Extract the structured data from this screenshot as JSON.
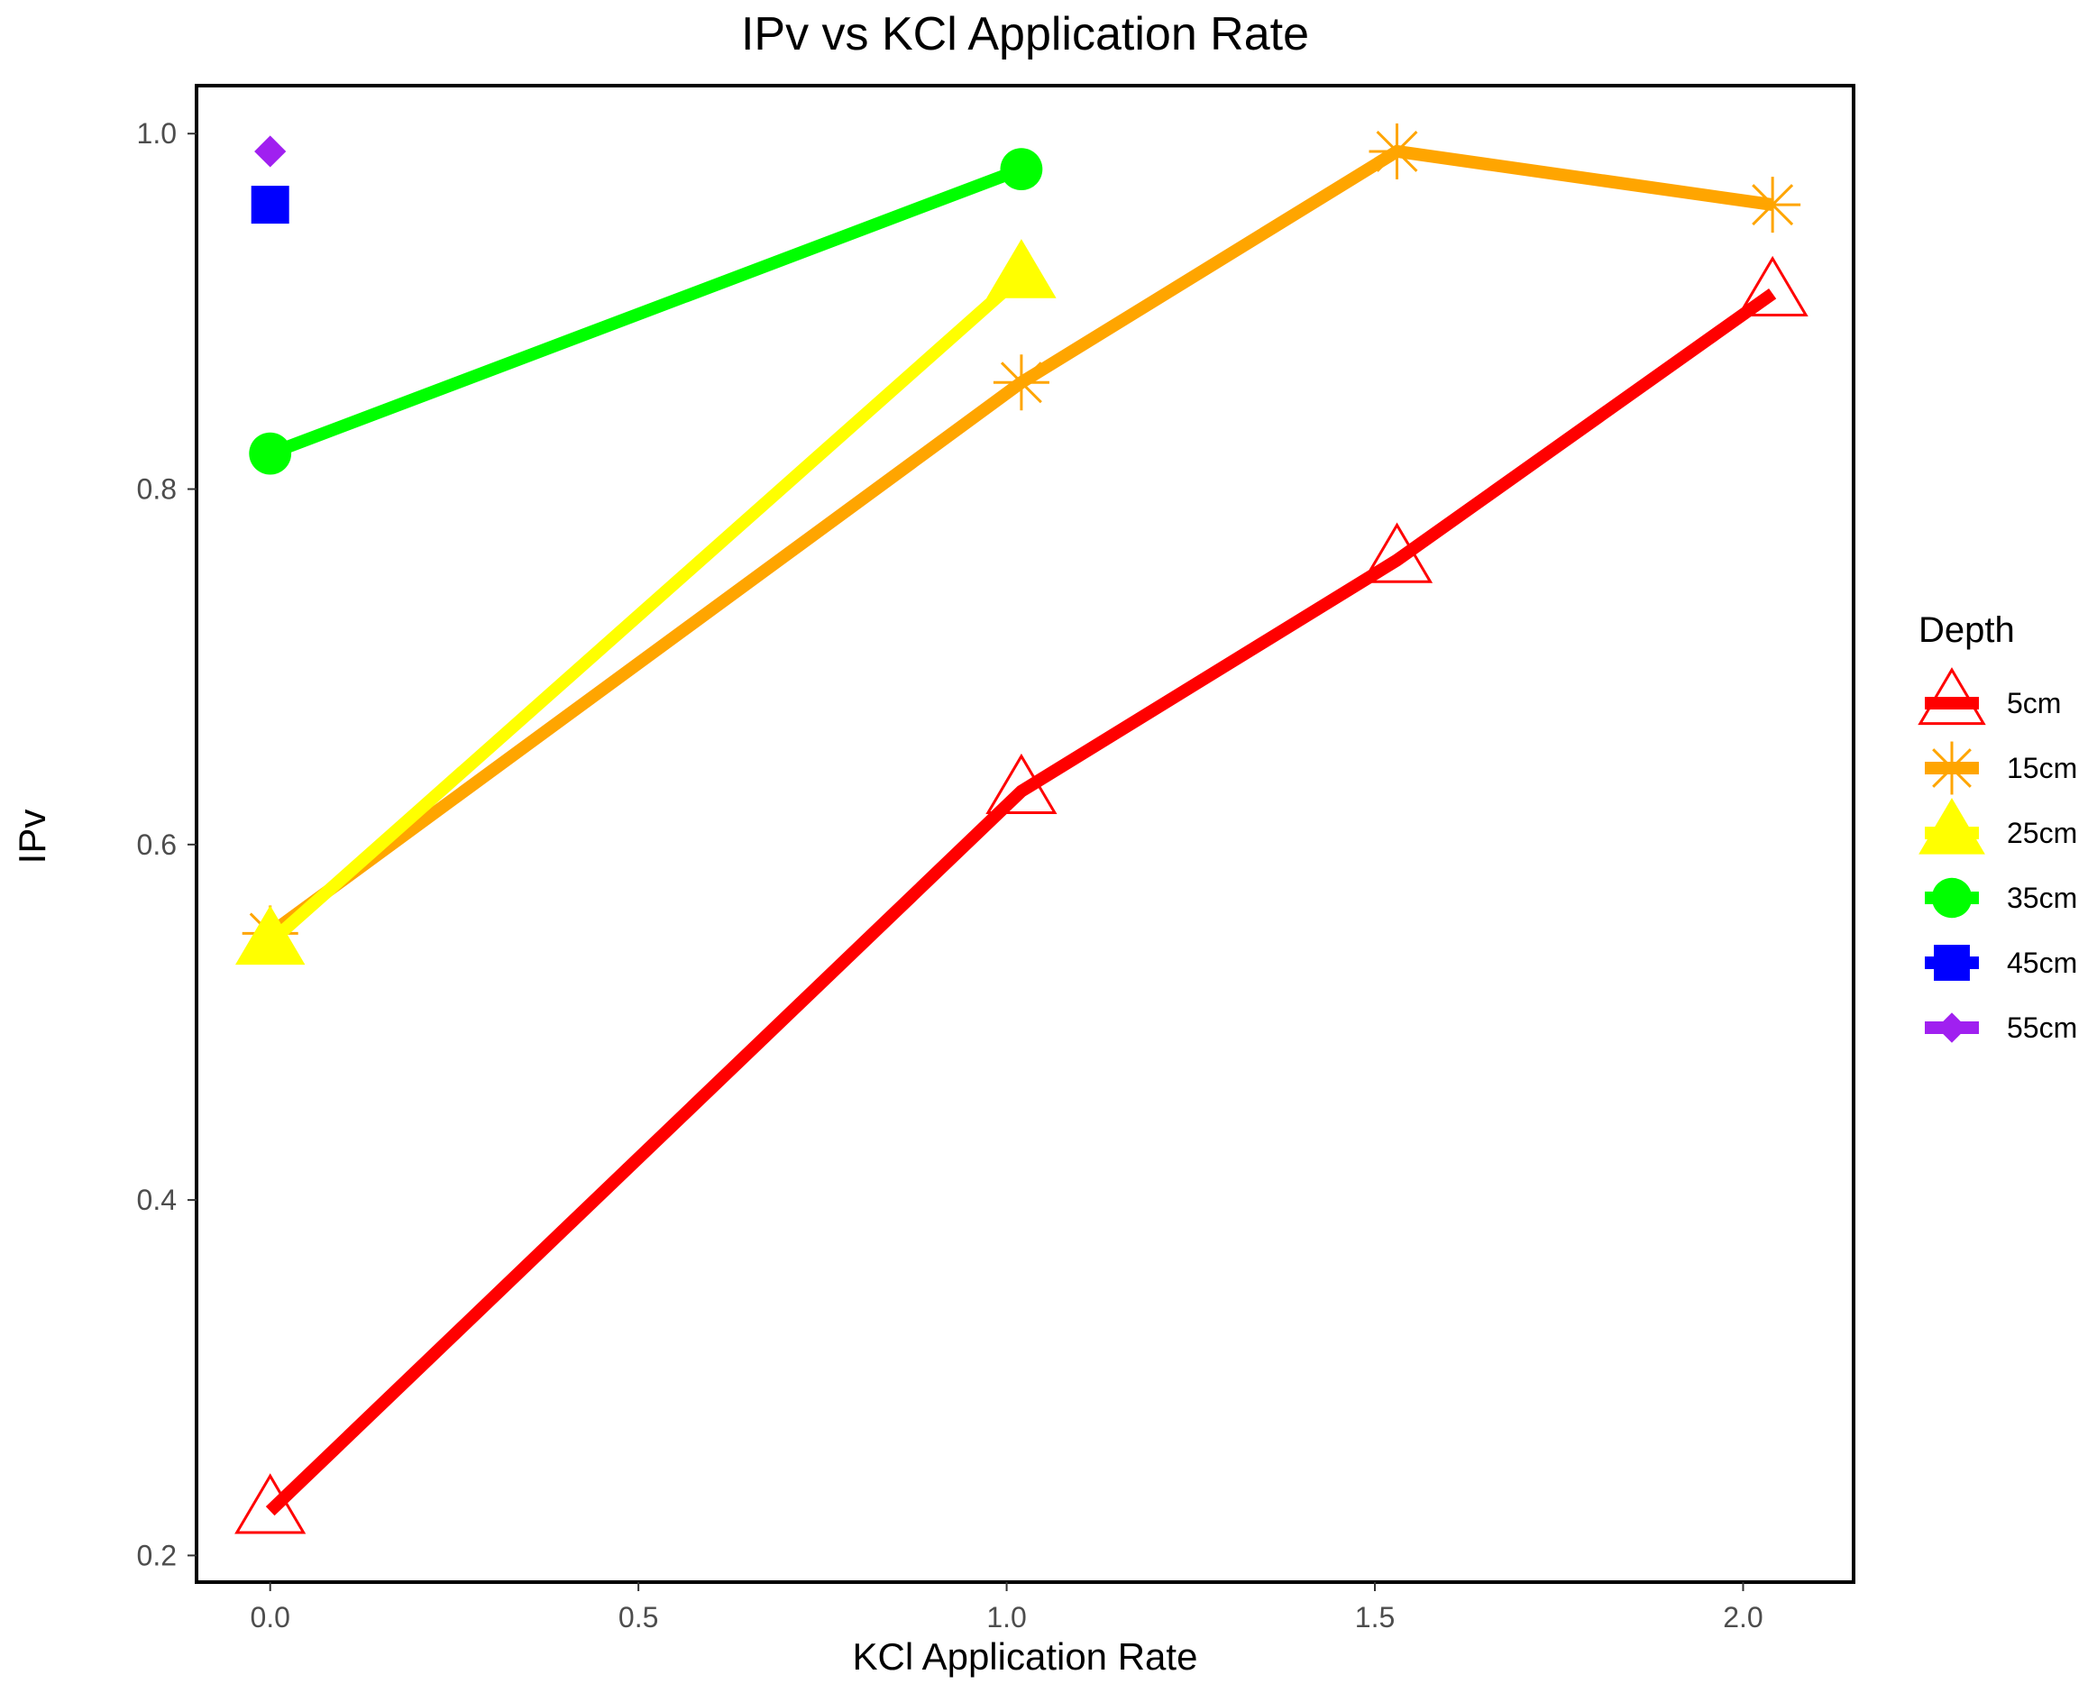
{
  "chart_data": {
    "type": "line",
    "title": "IPv vs KCl Application Rate",
    "xlabel": "KCl Application Rate",
    "ylabel": "IPv",
    "xlim": [
      -0.1,
      2.15
    ],
    "ylim": [
      0.185,
      1.027
    ],
    "x_ticks": [
      0.0,
      0.5,
      1.0,
      1.5,
      2.0
    ],
    "x_tick_labels": [
      "0.0",
      "0.5",
      "1.0",
      "1.5",
      "2.0"
    ],
    "y_ticks": [
      0.2,
      0.4,
      0.6,
      0.8,
      1.0
    ],
    "y_tick_labels": [
      "0.2",
      "0.4",
      "0.6",
      "0.8",
      "1.0"
    ],
    "grid": false,
    "legend": {
      "title": "Depth",
      "position": "right"
    },
    "series": [
      {
        "name": "5cm",
        "color": "#ff0000",
        "marker": "triangle-open",
        "x": [
          0,
          1.02,
          1.53,
          2.04
        ],
        "y": [
          0.225,
          0.63,
          0.76,
          0.91
        ]
      },
      {
        "name": "15cm",
        "color": "#ffa500",
        "marker": "asterisk",
        "x": [
          0,
          1.02,
          1.53,
          2.04
        ],
        "y": [
          0.55,
          0.86,
          0.99,
          0.96
        ]
      },
      {
        "name": "25cm",
        "color": "#ffff00",
        "marker": "triangle-filled",
        "x": [
          0,
          1.02
        ],
        "y": [
          0.545,
          0.92
        ]
      },
      {
        "name": "35cm",
        "color": "#00ff00",
        "marker": "circle",
        "x": [
          0,
          1.02
        ],
        "y": [
          0.82,
          0.98
        ]
      },
      {
        "name": "45cm",
        "color": "#0000ff",
        "marker": "square",
        "x": [
          0
        ],
        "y": [
          0.96
        ]
      },
      {
        "name": "55cm",
        "color": "#a020f0",
        "marker": "diamond",
        "x": [
          0
        ],
        "y": [
          0.99
        ]
      }
    ]
  }
}
